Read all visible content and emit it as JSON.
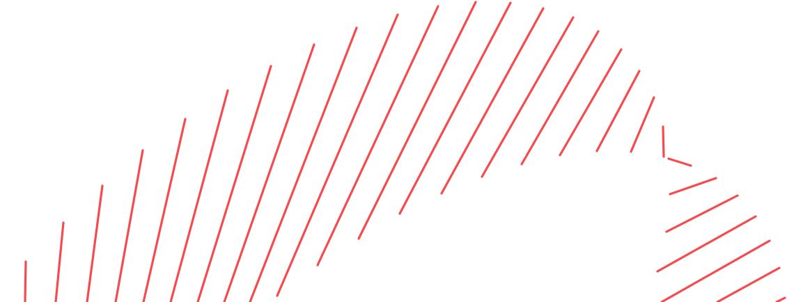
{
  "artwork": {
    "stroke_color": "#f54a4e",
    "background_color": "#ffffff"
  }
}
